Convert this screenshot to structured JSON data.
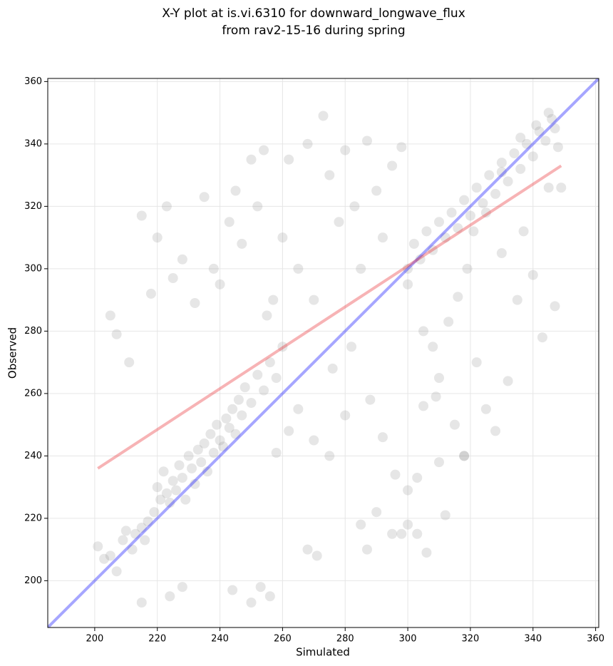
{
  "chart_data": {
    "type": "scatter",
    "title": [
      "X-Y plot at is.vi.6310 for downward_longwave_flux",
      "from rav2-15-16 during spring"
    ],
    "x_label": "Simulated",
    "y_label": "Observed",
    "xlim": [
      185,
      361
    ],
    "ylim": [
      185,
      361
    ],
    "xticks": [
      200,
      220,
      240,
      260,
      280,
      300,
      320,
      340,
      360
    ],
    "yticks": [
      200,
      220,
      240,
      260,
      280,
      300,
      320,
      340,
      360
    ],
    "grid": true,
    "points": {
      "color": "#808080",
      "x": [
        201,
        203,
        205,
        207,
        209,
        210,
        212,
        213,
        215,
        216,
        217,
        219,
        220,
        221,
        222,
        223,
        224,
        225,
        226,
        227,
        228,
        229,
        230,
        231,
        232,
        233,
        234,
        235,
        236,
        237,
        238,
        239,
        240,
        241,
        242,
        243,
        244,
        245,
        246,
        247,
        248,
        250,
        252,
        254,
        256,
        258,
        300,
        302,
        304,
        306,
        308,
        310,
        312,
        314,
        316,
        318,
        320,
        322,
        324,
        326,
        328,
        330,
        332,
        334,
        336,
        338,
        340,
        342,
        344,
        346,
        347,
        345,
        341,
        336,
        330,
        325,
        321,
        205,
        207,
        211,
        215,
        218,
        220,
        223,
        225,
        228,
        232,
        235,
        238,
        240,
        243,
        245,
        247,
        250,
        252,
        254,
        257,
        260,
        262,
        265,
        268,
        270,
        273,
        275,
        278,
        280,
        283,
        285,
        287,
        290,
        292,
        295,
        298,
        300,
        305,
        310,
        315,
        318,
        322,
        325,
        328,
        332,
        335,
        340,
        343,
        347,
        215,
        224,
        228,
        244,
        250,
        253,
        256,
        268,
        271,
        287,
        285,
        290,
        295,
        298,
        300,
        303,
        306,
        310,
        312,
        318,
        309,
        280,
        275,
        270,
        265,
        262,
        260,
        258,
        255,
        276,
        282,
        288,
        292,
        296,
        300,
        303,
        305,
        308,
        313,
        316,
        319,
        330,
        337,
        345,
        349,
        348
      ],
      "values": [
        211,
        207,
        208,
        203,
        213,
        216,
        210,
        215,
        217,
        213,
        219,
        222,
        230,
        226,
        235,
        228,
        225,
        232,
        229,
        237,
        233,
        226,
        240,
        236,
        231,
        242,
        238,
        244,
        235,
        247,
        241,
        250,
        245,
        243,
        252,
        249,
        255,
        247,
        258,
        253,
        262,
        257,
        266,
        261,
        270,
        265,
        300,
        308,
        303,
        312,
        306,
        315,
        310,
        318,
        313,
        322,
        317,
        326,
        321,
        330,
        324,
        334,
        328,
        337,
        332,
        340,
        336,
        344,
        341,
        348,
        345,
        350,
        346,
        342,
        331,
        318,
        312,
        285,
        279,
        270,
        317,
        292,
        310,
        320,
        297,
        303,
        289,
        323,
        300,
        295,
        315,
        325,
        308,
        335,
        320,
        338,
        290,
        310,
        335,
        300,
        340,
        290,
        349,
        330,
        315,
        338,
        320,
        300,
        341,
        325,
        310,
        333,
        339,
        295,
        280,
        265,
        250,
        240,
        270,
        255,
        248,
        264,
        290,
        298,
        278,
        288,
        193,
        195,
        198,
        197,
        193,
        198,
        195,
        210,
        208,
        210,
        218,
        222,
        215,
        215,
        218,
        215,
        209,
        238,
        221,
        240,
        259,
        253,
        240,
        245,
        255,
        248,
        275,
        241,
        285,
        268,
        275,
        258,
        246,
        234,
        229,
        233,
        256,
        275,
        283,
        291,
        300,
        305,
        312,
        326,
        326,
        339
      ]
    },
    "lines": [
      {
        "color": "#0000ff",
        "x": [
          185,
          361
        ],
        "values": [
          185,
          361
        ]
      },
      {
        "color": "#e8262a",
        "x": [
          201,
          349
        ],
        "values": [
          236,
          333
        ]
      }
    ]
  }
}
